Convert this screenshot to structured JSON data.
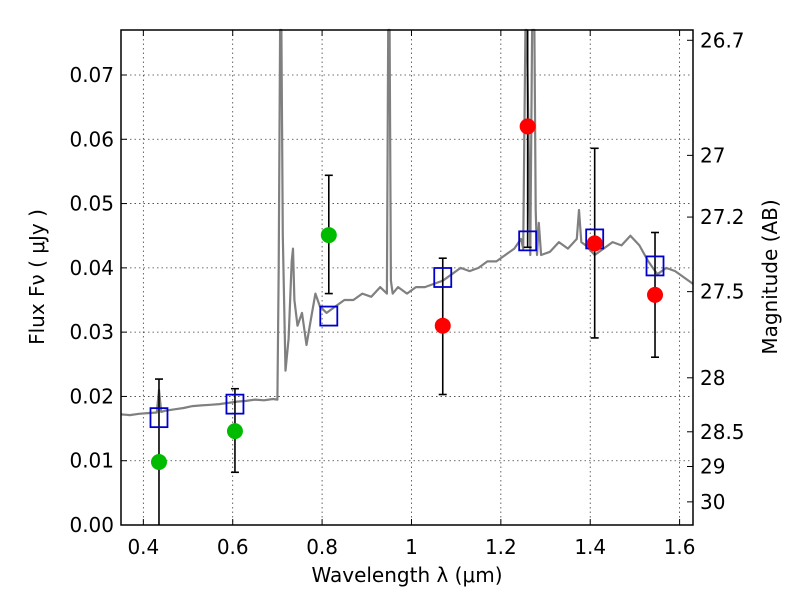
{
  "chart_data": {
    "type": "scatter",
    "title": "",
    "xlabel": "Wavelength  λ (μm)",
    "ylabel": "Flux  Fν  ( μJy )",
    "y2label": "Magnitude (AB)",
    "xlim": [
      0.35,
      1.63
    ],
    "ylim": [
      0.0,
      0.077
    ],
    "grid": true,
    "x_ticks": [
      {
        "value": 0.4,
        "label": "0.4"
      },
      {
        "value": 0.6,
        "label": "0.6"
      },
      {
        "value": 0.8,
        "label": "0.8"
      },
      {
        "value": 1.0,
        "label": "1"
      },
      {
        "value": 1.2,
        "label": "1.2"
      },
      {
        "value": 1.4,
        "label": "1.4"
      },
      {
        "value": 1.6,
        "label": "1.6"
      }
    ],
    "y_ticks": [
      {
        "value": 0.0,
        "label": "0.00"
      },
      {
        "value": 0.01,
        "label": "0.01"
      },
      {
        "value": 0.02,
        "label": "0.02"
      },
      {
        "value": 0.03,
        "label": "0.03"
      },
      {
        "value": 0.04,
        "label": "0.04"
      },
      {
        "value": 0.05,
        "label": "0.05"
      },
      {
        "value": 0.06,
        "label": "0.06"
      },
      {
        "value": 0.07,
        "label": "0.07"
      }
    ],
    "y2_ticks": [
      {
        "flux": 0.0754,
        "label": "26.7"
      },
      {
        "flux": 0.0575,
        "label": "27"
      },
      {
        "flux": 0.0479,
        "label": "27.2"
      },
      {
        "flux": 0.0363,
        "label": "27.5"
      },
      {
        "flux": 0.0229,
        "label": "28"
      },
      {
        "flux": 0.0145,
        "label": "28.5"
      },
      {
        "flux": 0.0091,
        "label": "29"
      },
      {
        "flux": 0.0036,
        "label": "30"
      }
    ],
    "colors": {
      "model_spectrum": "#808080",
      "model_photometry": "#0000cc",
      "detection_green": "#00bb00",
      "detection_red": "#ff0000",
      "error_bar": "#000000"
    },
    "model_spectrum": {
      "x": [
        0.35,
        0.37,
        0.39,
        0.41,
        0.43,
        0.435,
        0.44,
        0.45,
        0.47,
        0.49,
        0.51,
        0.53,
        0.55,
        0.57,
        0.59,
        0.61,
        0.63,
        0.65,
        0.67,
        0.69,
        0.7,
        0.703,
        0.706,
        0.709,
        0.712,
        0.718,
        0.725,
        0.732,
        0.735,
        0.738,
        0.745,
        0.755,
        0.765,
        0.775,
        0.785,
        0.795,
        0.81,
        0.83,
        0.85,
        0.87,
        0.89,
        0.91,
        0.93,
        0.945,
        0.948,
        0.951,
        0.954,
        0.958,
        0.97,
        0.99,
        1.01,
        1.03,
        1.05,
        1.07,
        1.09,
        1.11,
        1.13,
        1.15,
        1.17,
        1.19,
        1.21,
        1.23,
        1.245,
        1.25,
        1.255,
        1.258,
        1.262,
        1.266,
        1.27,
        1.275,
        1.278,
        1.281,
        1.285,
        1.29,
        1.31,
        1.33,
        1.35,
        1.37,
        1.375,
        1.38,
        1.39,
        1.41,
        1.43,
        1.45,
        1.47,
        1.49,
        1.51,
        1.53,
        1.55,
        1.57,
        1.59,
        1.61,
        1.63
      ],
      "y": [
        0.0172,
        0.0171,
        0.0173,
        0.0174,
        0.0175,
        0.021,
        0.0176,
        0.0178,
        0.018,
        0.0182,
        0.0185,
        0.0186,
        0.0187,
        0.0188,
        0.019,
        0.0192,
        0.0193,
        0.0195,
        0.0194,
        0.0196,
        0.0195,
        0.04,
        0.077,
        0.077,
        0.045,
        0.024,
        0.029,
        0.041,
        0.043,
        0.035,
        0.031,
        0.033,
        0.028,
        0.032,
        0.036,
        0.034,
        0.033,
        0.034,
        0.035,
        0.035,
        0.036,
        0.0355,
        0.037,
        0.036,
        0.077,
        0.077,
        0.038,
        0.036,
        0.037,
        0.036,
        0.037,
        0.037,
        0.0375,
        0.038,
        0.039,
        0.04,
        0.0395,
        0.04,
        0.041,
        0.041,
        0.042,
        0.043,
        0.0445,
        0.043,
        0.077,
        0.077,
        0.06,
        0.042,
        0.077,
        0.077,
        0.049,
        0.042,
        0.047,
        0.042,
        0.0425,
        0.044,
        0.043,
        0.0445,
        0.049,
        0.044,
        0.0435,
        0.042,
        0.043,
        0.044,
        0.0435,
        0.045,
        0.0435,
        0.041,
        0.039,
        0.04,
        0.0395,
        0.0385,
        0.0375
      ]
    },
    "model_photometry": {
      "x": [
        0.435,
        0.605,
        0.815,
        1.07,
        1.26,
        1.41,
        1.545
      ],
      "y": [
        0.0167,
        0.0188,
        0.0325,
        0.0385,
        0.0442,
        0.0445,
        0.0403
      ]
    },
    "green_points": {
      "x": [
        0.435,
        0.605,
        0.815
      ],
      "y": [
        0.0098,
        0.0146,
        0.0451
      ],
      "err_low": [
        0.0,
        0.0082,
        0.036
      ],
      "err_high": [
        0.0227,
        0.0212,
        0.0544
      ]
    },
    "red_points": {
      "x": [
        1.07,
        1.26,
        1.41,
        1.545
      ],
      "y": [
        0.031,
        0.062,
        0.0438,
        0.0358
      ],
      "err_low": [
        0.0203,
        0.0432,
        0.0291,
        0.0261
      ],
      "err_high": [
        0.0415,
        0.077,
        0.0586,
        0.0455
      ]
    }
  }
}
